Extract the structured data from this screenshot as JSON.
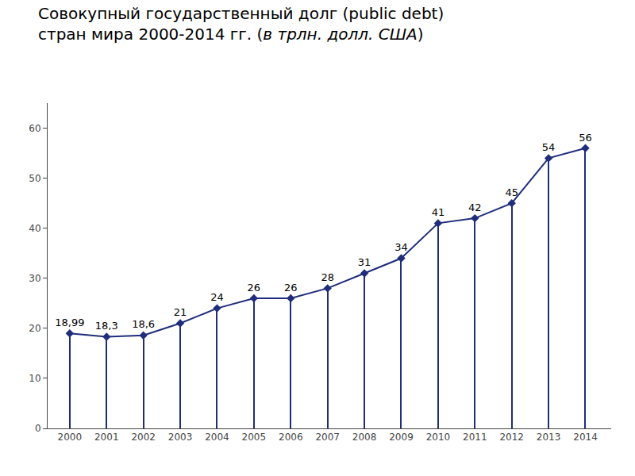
{
  "chart_data": {
    "type": "line",
    "title": "Совокупный государственный долг (public debt)",
    "subtitle": "стран мира 2000-2014 гг. (в трлн. долл. США)",
    "x": [
      2000,
      2001,
      2002,
      2003,
      2004,
      2005,
      2006,
      2007,
      2008,
      2009,
      2010,
      2011,
      2012,
      2013,
      2014
    ],
    "values": [
      18.99,
      18.3,
      18.6,
      21,
      24,
      26,
      26,
      28,
      31,
      34,
      41,
      42,
      45,
      54,
      56
    ],
    "value_labels": [
      "18,99",
      "18,3",
      "18,6",
      "21",
      "24",
      "26",
      "26",
      "28",
      "31",
      "34",
      "41",
      "42",
      "45",
      "54",
      "56"
    ],
    "data_labels": true,
    "color": "#1F2D7B",
    "marker": "diamond",
    "xlim": [
      1999.4,
      2014.7
    ],
    "xticks": [
      2000,
      2001,
      2002,
      2003,
      2004,
      2005,
      2006,
      2007,
      2008,
      2009,
      2010,
      2011,
      2012,
      2013,
      2014
    ],
    "ylim": [
      0,
      65
    ],
    "yticks": [
      0,
      10,
      20,
      30,
      40,
      50,
      60
    ],
    "grid": false
  }
}
